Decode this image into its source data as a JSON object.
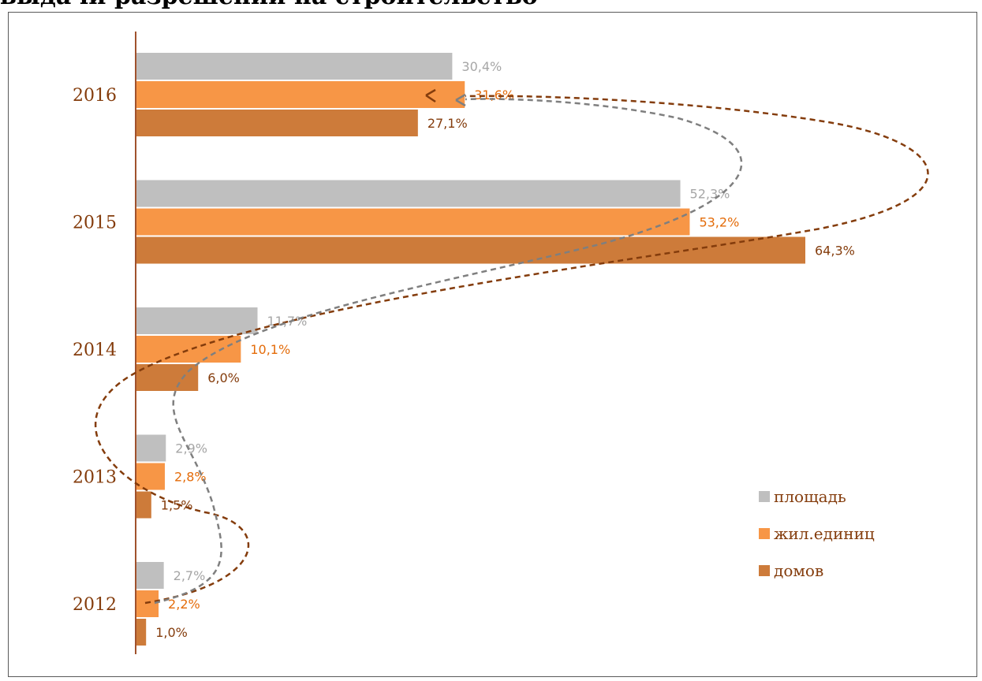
{
  "page": {
    "title": "выдачи разрешений на строительство"
  },
  "chart_data": {
    "type": "bar",
    "orientation": "horizontal",
    "categories": [
      "2016",
      "2015",
      "2014",
      "2013",
      "2012"
    ],
    "series": [
      {
        "name": "площадь",
        "color": "#bfbfbf",
        "label_color": "#a6a6a6",
        "values": [
          30.4,
          52.3,
          11.7,
          2.9,
          2.7
        ],
        "labels": [
          "30,4%",
          "52,3%",
          "11,7%",
          "2,9%",
          "2,7%"
        ]
      },
      {
        "name": "жил.единиц",
        "color": "#f79646",
        "label_color": "#e46c0a",
        "values": [
          31.6,
          53.2,
          10.1,
          2.8,
          2.2
        ],
        "labels": [
          "31,6%",
          "53,2%",
          "10,1%",
          "2,8%",
          "2,2%"
        ]
      },
      {
        "name": "домов",
        "color": "#cd7b3a",
        "label_color": "#843c0c",
        "values": [
          27.1,
          64.3,
          6.0,
          1.5,
          1.0
        ],
        "labels": [
          "27,1%",
          "64,3%",
          "6,0%",
          "1,5%",
          "1,0%"
        ]
      }
    ],
    "xlim": [
      0,
      70
    ],
    "grid": false,
    "legend": {
      "position": "bottom-right"
    },
    "annotations": [
      "dashed curved arrow (brown) from 2012 to 2016",
      "dashed curved arrow (gray) from 2012 to 2016"
    ],
    "axis_color": "#a0522d",
    "curve_colors": [
      "#843c0c",
      "#7f7f7f"
    ]
  }
}
